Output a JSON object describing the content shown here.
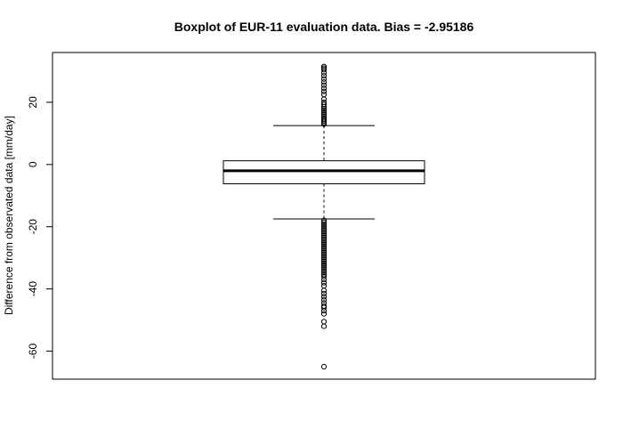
{
  "chart_data": {
    "type": "boxplot",
    "title": "Boxplot of EUR-11 evaluation data. Bias = -2.95186",
    "xlabel": "",
    "ylabel": "Difference from observated data [mm/day]",
    "ylim": [
      -69,
      36
    ],
    "yticks": [
      -60,
      -40,
      -20,
      0,
      20
    ],
    "grid": false,
    "box": {
      "upper_whisker": 12.5,
      "q3": 1.2,
      "median": -2.0,
      "q1": -6.2,
      "lower_whisker": -17.5
    },
    "outliers": [
      31.5,
      31.0,
      30.5,
      29.5,
      28.5,
      27.5,
      26.5,
      25.5,
      24.5,
      23.5,
      22.5,
      21.0,
      20.0,
      19.3,
      18.6,
      18.0,
      17.4,
      16.8,
      16.2,
      15.6,
      15.0,
      14.5,
      14.0,
      13.5,
      13.0,
      -18.0,
      -18.6,
      -19.2,
      -19.8,
      -20.4,
      -21.0,
      -21.6,
      -22.2,
      -22.8,
      -23.4,
      -24.0,
      -24.6,
      -25.2,
      -25.8,
      -26.4,
      -27.0,
      -27.6,
      -28.2,
      -28.8,
      -29.4,
      -30.0,
      -30.6,
      -31.2,
      -31.8,
      -32.4,
      -33.0,
      -33.6,
      -34.2,
      -34.8,
      -35.4,
      -36.0,
      -37.0,
      -38.0,
      -39.0,
      -40.5,
      -41.5,
      -42.5,
      -43.5,
      -44.5,
      -45.5,
      -46.0,
      -47.0,
      -48.0,
      -50.5,
      -52.0,
      -65.0
    ]
  }
}
